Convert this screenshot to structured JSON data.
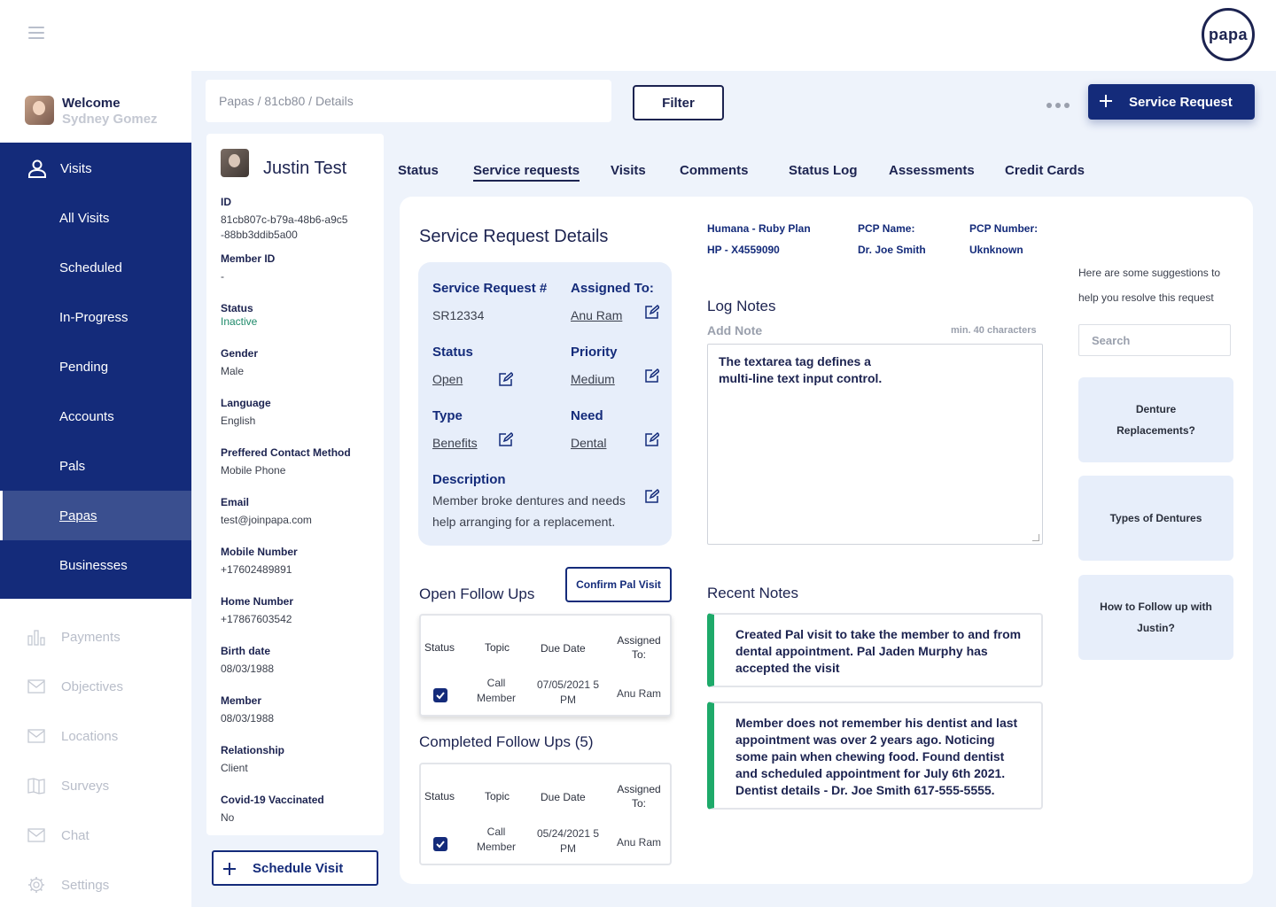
{
  "brand": {
    "logo_text": "papa"
  },
  "user": {
    "welcome": "Welcome",
    "name": "Sydney Gomez"
  },
  "nav": {
    "visits": "Visits",
    "items": [
      "All Visits",
      "Scheduled",
      "In-Progress",
      "Pending",
      "Accounts",
      "Pals",
      "Papas",
      "Businesses"
    ],
    "active": "Papas",
    "lower": [
      {
        "label": "Payments",
        "icon": "bar-chart-icon"
      },
      {
        "label": "Objectives",
        "icon": "mail-icon"
      },
      {
        "label": "Locations",
        "icon": "mail-icon"
      },
      {
        "label": "Surveys",
        "icon": "map-icon"
      },
      {
        "label": "Chat",
        "icon": "mail-icon"
      },
      {
        "label": "Settings",
        "icon": "gear-icon"
      }
    ]
  },
  "header": {
    "breadcrumb": "Papas / 81cb80 / Details",
    "filter_label": "Filter",
    "service_request_label": "Service Request"
  },
  "member": {
    "name": "Justin Test",
    "fields": [
      {
        "label": "ID",
        "value": "81cb807c-b79a-48b6-a9c5\n-88bb3ddib5a00"
      },
      {
        "label": "Member ID",
        "value": "-"
      },
      {
        "label": "Status",
        "value": "Inactive"
      },
      {
        "label": "Gender",
        "value": "Male"
      },
      {
        "label": "Language",
        "value": "English"
      },
      {
        "label": "Preffered Contact Method",
        "value": "Mobile Phone"
      },
      {
        "label": "Email",
        "value": "test@joinpapa.com"
      },
      {
        "label": "Mobile Number",
        "value": "+17602489891"
      },
      {
        "label": "Home Number",
        "value": "+17867603542"
      },
      {
        "label": "Birth date",
        "value": "08/03/1988"
      },
      {
        "label": "Member",
        "value": "08/03/1988"
      },
      {
        "label": "Relationship",
        "value": "Client"
      },
      {
        "label": "Covid-19 Vaccinated",
        "value": "No"
      }
    ],
    "schedule_label": "Schedule Visit"
  },
  "tabs": [
    {
      "label": "Status",
      "active": false
    },
    {
      "label": "Service requests",
      "active": true
    },
    {
      "label": "Visits",
      "active": false
    },
    {
      "label": "Comments",
      "active": false
    },
    {
      "label": "Status Log",
      "active": false
    },
    {
      "label": "Assessments",
      "active": false
    },
    {
      "label": "Credit Cards",
      "active": false
    }
  ],
  "service_request": {
    "title": "Service Request Details",
    "number_label": "Service Request #",
    "number": "SR12334",
    "assigned_label": "Assigned To:",
    "assigned": "Anu Ram",
    "status_label": "Status",
    "status": "Open",
    "priority_label": "Priority",
    "priority": "Medium",
    "type_label": "Type",
    "type": "Benefits",
    "need_label": "Need",
    "need": "Dental",
    "description_label": "Description",
    "description": "Member broke dentures and needs help arranging for a replacement."
  },
  "follow_ups": {
    "open_title": "Open Follow Ups",
    "confirm_label": "Confirm Pal Visit",
    "completed_title": "Completed Follow Ups (5)",
    "columns": [
      "Status",
      "Topic",
      "Due Date",
      "Assigned To:"
    ],
    "open_rows": [
      {
        "checked": true,
        "topic": "Call Member",
        "due": "07/05/2021 5 PM",
        "assigned": "Anu Ram"
      }
    ],
    "completed_rows": [
      {
        "checked": true,
        "topic": "Call Member",
        "due": "05/24/2021 5 PM",
        "assigned": "Anu Ram"
      }
    ]
  },
  "plan": {
    "plan_name": "Humana - Ruby Plan",
    "plan_id": "HP - X4559090",
    "pcp_name_label": "PCP Name:",
    "pcp_name": "Dr. Joe Smith",
    "pcp_number_label": "PCP Number:",
    "pcp_number": "Uknknown"
  },
  "log_notes": {
    "title": "Log Notes",
    "add_note": "Add Note",
    "min_chars": "min. 40 characters",
    "textarea_value": "The textarea tag defines a multi-line text input control."
  },
  "recent_notes": {
    "title": "Recent Notes",
    "notes": [
      "Created Pal visit to take the member to and from dental appointment. Pal Jaden Murphy has accepted the visit",
      "Member does not remember his dentist and last appointment was over 2 years ago. Noticing some pain when chewing food. Found dentist and scheduled appointment for July 6th 2021. Dentist details - Dr. Joe Smith 617-555-5555."
    ]
  },
  "suggestions": {
    "intro": "Here are some suggestions to help you resolve this request",
    "search_placeholder": "Search",
    "cards": [
      "Denture Replacements?",
      "Types of Dentures",
      "How to Follow up with Justin?"
    ]
  },
  "colors": {
    "navy": "#142b7a",
    "text": "#1c2350",
    "status_inactive": "#1e8a6a",
    "note_accent": "#1eaa6a",
    "light_panel": "#e7eefa"
  }
}
